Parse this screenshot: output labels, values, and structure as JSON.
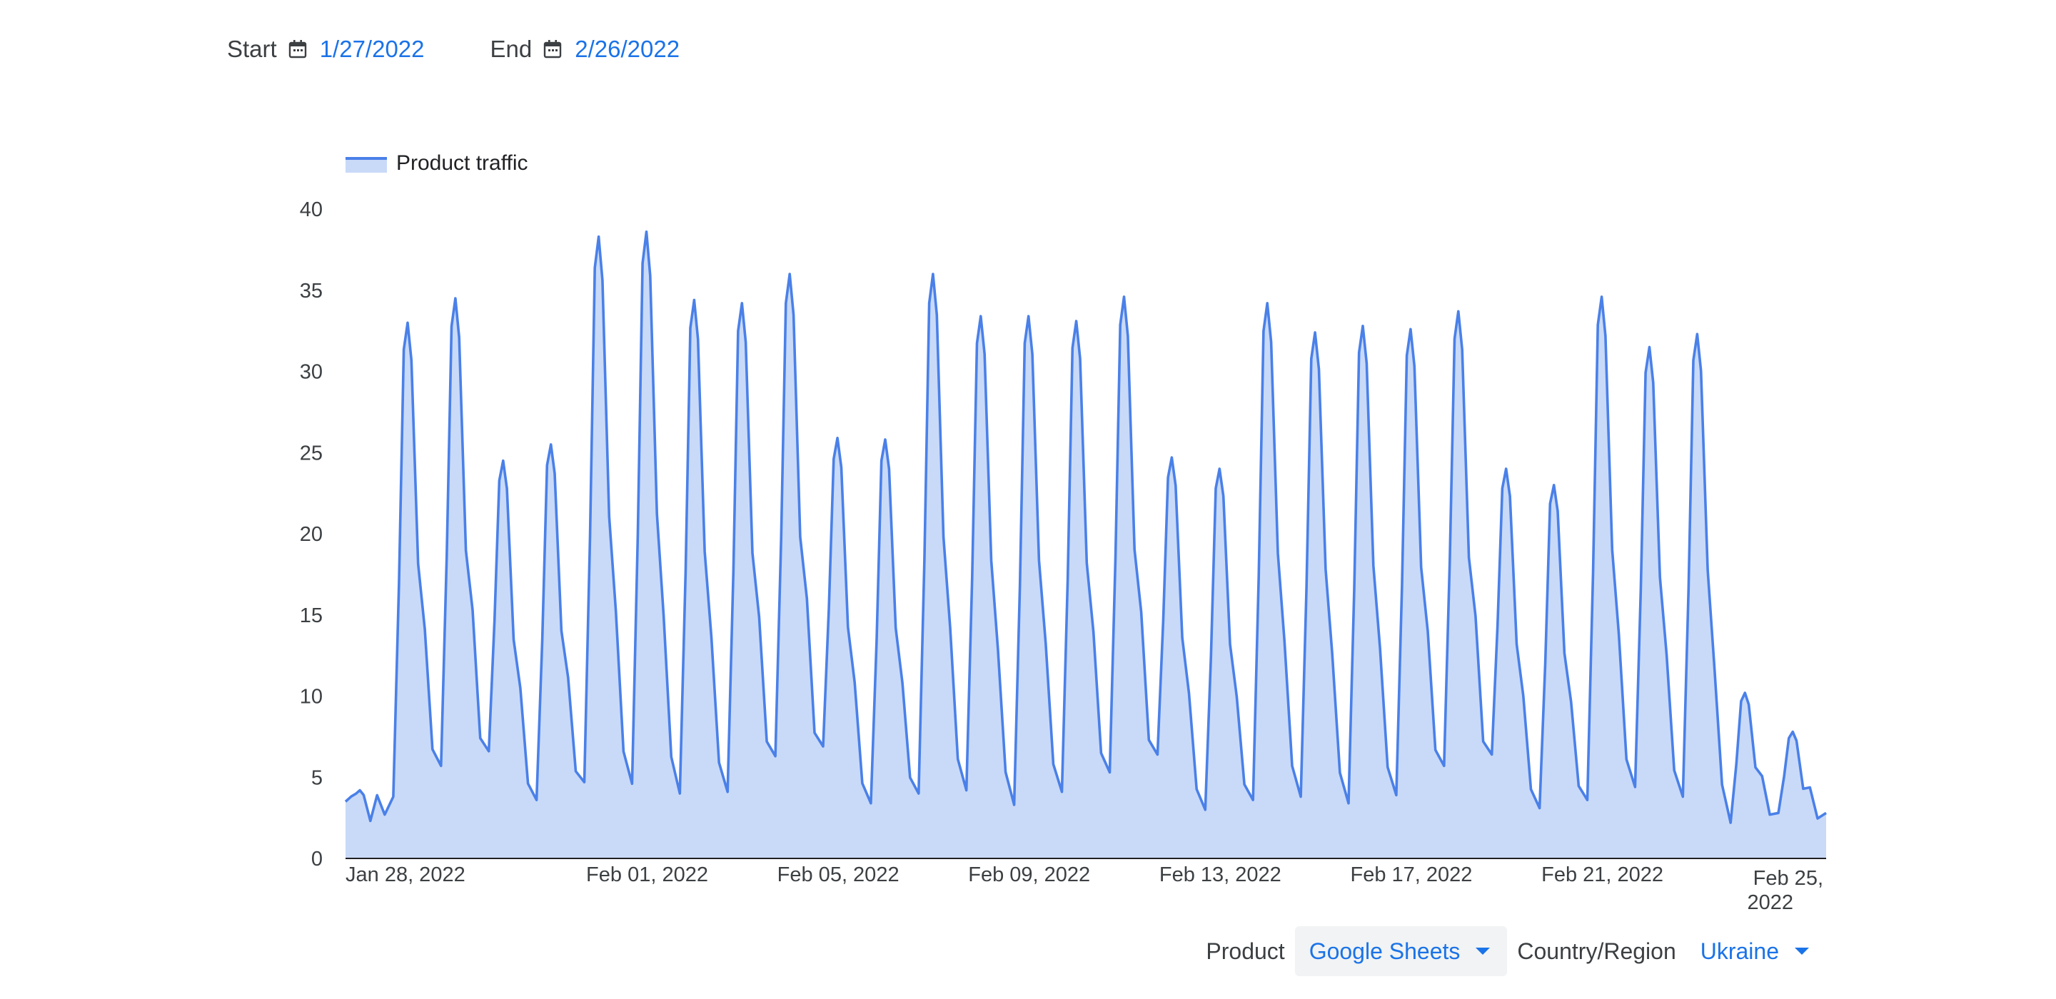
{
  "date_range": {
    "start_label": "Start",
    "start_value": "1/27/2022",
    "end_label": "End",
    "end_value": "2/26/2022"
  },
  "filters": {
    "product_label": "Product",
    "product_value": "Google Sheets",
    "region_label": "Country/Region",
    "region_value": "Ukraine"
  },
  "colors": {
    "accent": "#1a73e8",
    "line": "#4a80e8",
    "area": "#c9daf8"
  },
  "chart_data": {
    "type": "area",
    "legend": [
      "Product traffic"
    ],
    "legend_position": "top-left",
    "grid": false,
    "ylim": [
      0,
      40
    ],
    "yticks": [
      "0",
      "5",
      "10",
      "15",
      "20",
      "25",
      "30",
      "35",
      "40"
    ],
    "xticks": [
      "Jan 28, 2022",
      "Feb 01, 2022",
      "Feb 05, 2022",
      "Feb 09, 2022",
      "Feb 13, 2022",
      "Feb 17, 2022",
      "Feb 21, 2022",
      "Feb 25, 2022"
    ],
    "xlim": [
      "2022-01-27",
      "2022-02-26"
    ],
    "series": [
      {
        "name": "Product traffic",
        "peaks": [
          {
            "date": "2022-01-27",
            "value": 4.2
          },
          {
            "date": "2022-01-28",
            "value": 33
          },
          {
            "date": "2022-01-29",
            "value": 34.5
          },
          {
            "date": "2022-01-30",
            "value": 24.5
          },
          {
            "date": "2022-01-31",
            "value": 25.5
          },
          {
            "date": "2022-02-01",
            "value": 38.3
          },
          {
            "date": "2022-02-02",
            "value": 38.6
          },
          {
            "date": "2022-02-03",
            "value": 34.4
          },
          {
            "date": "2022-02-04",
            "value": 34.2
          },
          {
            "date": "2022-02-05",
            "value": 36
          },
          {
            "date": "2022-02-06",
            "value": 25.9
          },
          {
            "date": "2022-02-07",
            "value": 25.8
          },
          {
            "date": "2022-02-08",
            "value": 36
          },
          {
            "date": "2022-02-09",
            "value": 33.4
          },
          {
            "date": "2022-02-10",
            "value": 33.4
          },
          {
            "date": "2022-02-11",
            "value": 33.1
          },
          {
            "date": "2022-02-12",
            "value": 34.6
          },
          {
            "date": "2022-02-13",
            "value": 24.7
          },
          {
            "date": "2022-02-14",
            "value": 24
          },
          {
            "date": "2022-02-15",
            "value": 34.2
          },
          {
            "date": "2022-02-16",
            "value": 32.4
          },
          {
            "date": "2022-02-17",
            "value": 32.8
          },
          {
            "date": "2022-02-18",
            "value": 32.6
          },
          {
            "date": "2022-02-19",
            "value": 33.7
          },
          {
            "date": "2022-02-20",
            "value": 24
          },
          {
            "date": "2022-02-21",
            "value": 23
          },
          {
            "date": "2022-02-22",
            "value": 34.6
          },
          {
            "date": "2022-02-23",
            "value": 31.5
          },
          {
            "date": "2022-02-24",
            "value": 32.3
          },
          {
            "date": "2022-02-25",
            "value": 10.2
          },
          {
            "date": "2022-02-26",
            "value": 7.8
          }
        ],
        "troughs": [
          {
            "date": "2022-01-27",
            "value": 3.5
          },
          {
            "date": "2022-01-28",
            "value": 3.8
          },
          {
            "date": "2022-01-29",
            "value": 5.7
          },
          {
            "date": "2022-01-30",
            "value": 6.6
          },
          {
            "date": "2022-01-31",
            "value": 3.6
          },
          {
            "date": "2022-02-01",
            "value": 4.7
          },
          {
            "date": "2022-02-02",
            "value": 4.6
          },
          {
            "date": "2022-02-03",
            "value": 4
          },
          {
            "date": "2022-02-04",
            "value": 4.1
          },
          {
            "date": "2022-02-05",
            "value": 6.3
          },
          {
            "date": "2022-02-06",
            "value": 6.9
          },
          {
            "date": "2022-02-07",
            "value": 3.4
          },
          {
            "date": "2022-02-08",
            "value": 4
          },
          {
            "date": "2022-02-09",
            "value": 4.2
          },
          {
            "date": "2022-02-10",
            "value": 3.3
          },
          {
            "date": "2022-02-11",
            "value": 4.1
          },
          {
            "date": "2022-02-12",
            "value": 5.3
          },
          {
            "date": "2022-02-13",
            "value": 6.4
          },
          {
            "date": "2022-02-14",
            "value": 3
          },
          {
            "date": "2022-02-15",
            "value": 3.6
          },
          {
            "date": "2022-02-16",
            "value": 3.8
          },
          {
            "date": "2022-02-17",
            "value": 3.4
          },
          {
            "date": "2022-02-18",
            "value": 3.9
          },
          {
            "date": "2022-02-19",
            "value": 5.7
          },
          {
            "date": "2022-02-20",
            "value": 6.4
          },
          {
            "date": "2022-02-21",
            "value": 3.1
          },
          {
            "date": "2022-02-22",
            "value": 3.6
          },
          {
            "date": "2022-02-23",
            "value": 4.4
          },
          {
            "date": "2022-02-24",
            "value": 3.8
          },
          {
            "date": "2022-02-25",
            "value": 2.2
          },
          {
            "date": "2022-02-26",
            "value": 2.8
          }
        ]
      }
    ]
  }
}
